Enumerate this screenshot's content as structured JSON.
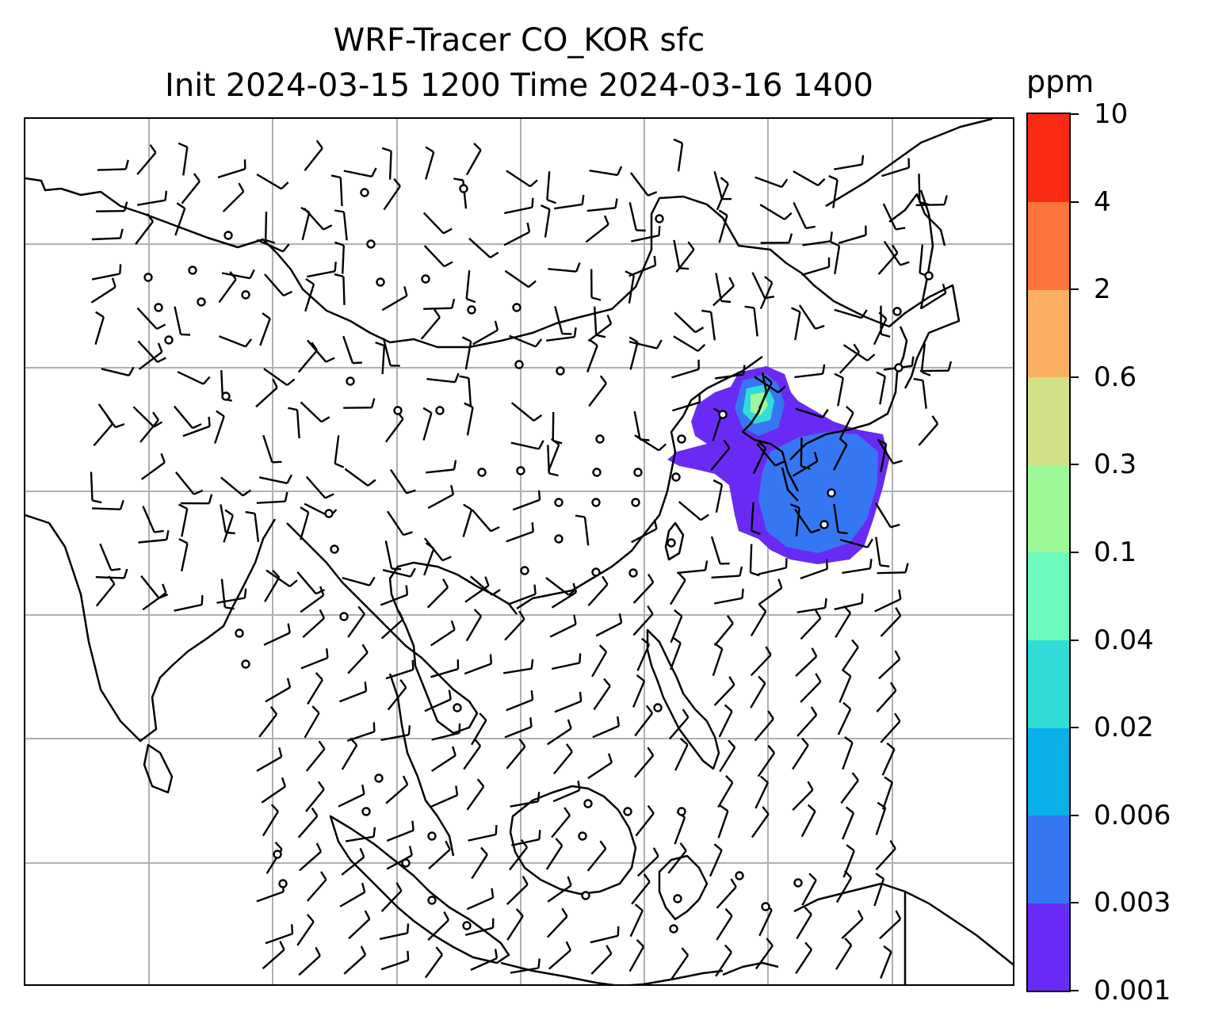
{
  "title": {
    "line1": "WRF-Tracer CO_KOR sfc",
    "line2": "Init 2024-03-15 1200 Time 2024-03-16 1400"
  },
  "colorbar": {
    "unit": "ppm",
    "levels": [
      "0.001",
      "0.003",
      "0.006",
      "0.02",
      "0.04",
      "0.1",
      "0.3",
      "0.6",
      "2",
      "4",
      "10"
    ],
    "colors": [
      "#6a2af5",
      "#3577f2",
      "#0ab0ea",
      "#31dcd7",
      "#6efbbe",
      "#9df897",
      "#d0e187",
      "#fdaf61",
      "#fd723d",
      "#fb2a15"
    ]
  },
  "map": {
    "gridlines": true,
    "coastline_color": "#000000",
    "gridline_color": "#b0b0b0",
    "plume_colors": {
      "outer": "#6a2af5",
      "mid": "#3577f2",
      "inner": "#31dcd7",
      "core": "#9df897"
    }
  }
}
